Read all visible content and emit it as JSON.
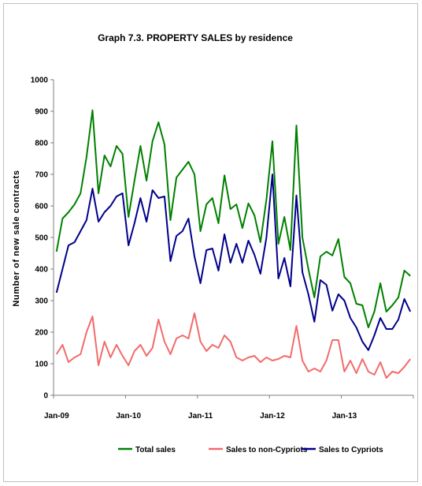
{
  "chart_data": {
    "type": "line",
    "title": "Graph 7.3. PROPERTY SALES by residence",
    "ylabel": "Number of new sale contracts",
    "xlabel": "",
    "ylim": [
      0,
      1000
    ],
    "yticks": [
      0,
      100,
      200,
      300,
      400,
      500,
      600,
      700,
      800,
      900,
      1000
    ],
    "x_tick_labels": [
      {
        "label": "Jan-09",
        "index": 0
      },
      {
        "label": "Jan-10",
        "index": 12
      },
      {
        "label": "Jan-11",
        "index": 24
      },
      {
        "label": "Jan-12",
        "index": 36
      },
      {
        "label": "Jan-13",
        "index": 48
      }
    ],
    "x_count": 60,
    "grid": false,
    "legend_position": "bottom",
    "series": [
      {
        "name": "Total sales",
        "color": "#008000",
        "values": [
          455,
          560,
          580,
          605,
          640,
          755,
          903,
          640,
          760,
          725,
          790,
          765,
          565,
          680,
          790,
          680,
          805,
          865,
          795,
          555,
          690,
          715,
          740,
          700,
          520,
          605,
          625,
          545,
          697,
          590,
          605,
          530,
          608,
          570,
          485,
          620,
          805,
          480,
          565,
          460,
          855,
          500,
          400,
          310,
          440,
          455,
          443,
          495,
          375,
          355,
          290,
          285,
          215,
          265,
          355,
          265,
          285,
          310,
          395,
          378
        ]
      },
      {
        "name": "Sales to non-Cypriots",
        "color": "#f26b6b",
        "values": [
          130,
          160,
          105,
          120,
          130,
          200,
          250,
          95,
          170,
          120,
          160,
          125,
          95,
          140,
          160,
          125,
          150,
          240,
          170,
          130,
          180,
          190,
          180,
          260,
          170,
          140,
          160,
          150,
          190,
          170,
          120,
          110,
          120,
          125,
          105,
          120,
          110,
          115,
          125,
          120,
          220,
          110,
          75,
          85,
          75,
          110,
          175,
          175,
          75,
          110,
          70,
          115,
          75,
          65,
          105,
          55,
          75,
          70,
          90,
          115
        ]
      },
      {
        "name": "Sales to Cypriots",
        "color": "#00008b",
        "values": [
          325,
          400,
          475,
          485,
          520,
          555,
          655,
          550,
          580,
          600,
          630,
          640,
          475,
          545,
          625,
          550,
          650,
          625,
          630,
          425,
          505,
          520,
          560,
          440,
          355,
          460,
          465,
          395,
          510,
          420,
          480,
          420,
          490,
          445,
          385,
          500,
          700,
          370,
          435,
          345,
          633,
          390,
          320,
          233,
          365,
          350,
          268,
          320,
          300,
          245,
          215,
          170,
          143,
          190,
          245,
          210,
          210,
          240,
          305,
          265
        ]
      }
    ]
  }
}
